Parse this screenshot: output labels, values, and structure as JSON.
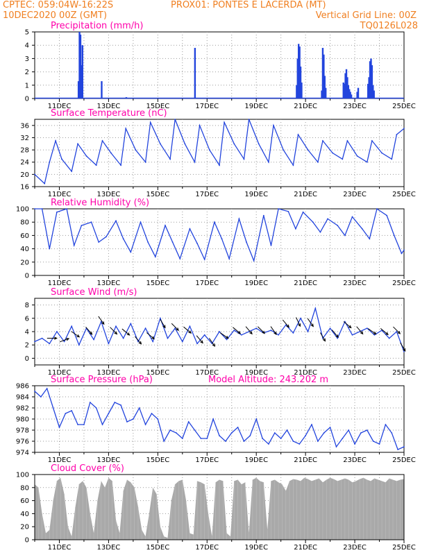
{
  "header": {
    "left_line1": "CPTEC:   059:04W-16:22S",
    "location": "PROX01: PONTES E LACERDA (MT)",
    "left_line2": "10DEC2020 00Z (GMT)",
    "grid_note": "Vertical Grid Line: 00Z",
    "code": "TQ0126L028"
  },
  "colors": {
    "line": "#2244dd",
    "title": "#ff00aa",
    "header": "#f07f20",
    "cloud": "#a9a9a9",
    "grid": "#9a9a9a"
  },
  "chart_data": [
    {
      "id": "precip",
      "type": "bar",
      "title": "Precipitation (mm/h)",
      "x_tick_labels": [
        "11DEC",
        "13DEC",
        "15DEC",
        "17DEC",
        "19DEC",
        "21DEC",
        "23DEC",
        "25DEC"
      ],
      "x_range_days": [
        10,
        25
      ],
      "ylim": [
        0,
        5
      ],
      "yticks": [
        0,
        1,
        2,
        3,
        4,
        5
      ],
      "x": [
        11.78,
        11.82,
        11.86,
        11.9,
        11.94,
        12.72,
        13.72,
        16.51,
        20.64,
        20.68,
        20.72,
        20.76,
        20.8,
        20.84,
        21.66,
        21.7,
        21.74,
        21.78,
        21.82,
        22.54,
        22.58,
        22.62,
        22.66,
        22.7,
        22.74,
        22.78,
        22.82,
        22.86,
        23.1,
        23.14,
        23.54,
        23.58,
        23.62,
        23.66,
        23.7,
        23.74,
        23.78
      ],
      "values": [
        1.3,
        5.0,
        4.8,
        2.5,
        4.0,
        1.3,
        0.1,
        3.8,
        1.0,
        3.0,
        4.1,
        3.9,
        2.4,
        1.2,
        0.6,
        3.8,
        3.3,
        1.7,
        0.8,
        1.2,
        1.1,
        1.9,
        2.2,
        1.6,
        1.0,
        0.7,
        0.5,
        0.3,
        0.5,
        0.8,
        1.1,
        1.6,
        2.8,
        3.0,
        2.5,
        1.0,
        0.6
      ]
    },
    {
      "id": "temp",
      "type": "line",
      "title": "Surface Temperature (nC)",
      "x_tick_labels": [
        "11DEC",
        "13DEC",
        "15DEC",
        "17DEC",
        "19DEC",
        "21DEC",
        "23DEC",
        "25DEC"
      ],
      "x_range_days": [
        10,
        25
      ],
      "ylim": [
        16,
        38
      ],
      "yticks": [
        16,
        20,
        24,
        28,
        32,
        36
      ],
      "x": [
        10.0,
        10.4,
        10.6,
        10.85,
        11.1,
        11.5,
        11.75,
        12.1,
        12.5,
        12.75,
        13.1,
        13.5,
        13.7,
        14.1,
        14.5,
        14.7,
        15.1,
        15.5,
        15.7,
        16.1,
        16.5,
        16.7,
        17.1,
        17.5,
        17.7,
        18.1,
        18.5,
        18.7,
        19.1,
        19.5,
        19.7,
        20.1,
        20.5,
        20.7,
        21.1,
        21.5,
        21.7,
        22.1,
        22.5,
        22.7,
        23.1,
        23.5,
        23.7,
        24.1,
        24.5,
        24.7,
        25.0
      ],
      "values": [
        20,
        17,
        24,
        31,
        25,
        21,
        30,
        26,
        23,
        31,
        27,
        23,
        35,
        28,
        24,
        37,
        30,
        25,
        38,
        30,
        24,
        36,
        28,
        23,
        37,
        30,
        25,
        38,
        30,
        24,
        36,
        28,
        23,
        33,
        28,
        24,
        31,
        27,
        25,
        31,
        26,
        24,
        31,
        27,
        25,
        33,
        35
      ]
    },
    {
      "id": "rh",
      "type": "line",
      "title": "Relative Humidity (%)",
      "x_tick_labels": [
        "11DEC",
        "13DEC",
        "15DEC",
        "17DEC",
        "19DEC",
        "21DEC",
        "23DEC",
        "25DEC"
      ],
      "x_range_days": [
        10,
        25
      ],
      "ylim": [
        0,
        100
      ],
      "yticks": [
        0,
        20,
        40,
        60,
        80,
        100
      ],
      "x": [
        10.0,
        10.3,
        10.6,
        10.9,
        11.3,
        11.6,
        11.9,
        12.3,
        12.6,
        12.9,
        13.3,
        13.6,
        13.9,
        14.3,
        14.6,
        14.9,
        15.3,
        15.6,
        15.9,
        16.3,
        16.6,
        16.9,
        17.3,
        17.6,
        17.9,
        18.3,
        18.6,
        18.9,
        19.3,
        19.6,
        19.9,
        20.3,
        20.6,
        20.9,
        21.3,
        21.6,
        21.9,
        22.3,
        22.6,
        22.9,
        23.3,
        23.6,
        23.9,
        24.3,
        24.6,
        24.9,
        25.0
      ],
      "values": [
        100,
        100,
        40,
        95,
        100,
        45,
        75,
        80,
        50,
        58,
        82,
        55,
        35,
        80,
        50,
        28,
        75,
        50,
        25,
        70,
        48,
        24,
        80,
        55,
        25,
        85,
        50,
        22,
        90,
        45,
        100,
        96,
        70,
        95,
        80,
        65,
        85,
        75,
        60,
        88,
        70,
        55,
        100,
        90,
        60,
        33,
        38
      ]
    },
    {
      "id": "wind",
      "type": "line",
      "title": "Surface Wind (m/s)",
      "x_tick_labels": [
        "11DEC",
        "13DEC",
        "15DEC",
        "17DEC",
        "19DEC",
        "21DEC",
        "23DEC",
        "25DEC"
      ],
      "x_range_days": [
        10,
        25
      ],
      "ylim": [
        -1,
        9
      ],
      "yticks": [
        0,
        2,
        4,
        6,
        8
      ],
      "x": [
        10.0,
        10.3,
        10.6,
        10.9,
        11.2,
        11.5,
        11.8,
        12.1,
        12.4,
        12.7,
        13.0,
        13.3,
        13.6,
        13.9,
        14.2,
        14.5,
        14.8,
        15.1,
        15.4,
        15.7,
        16.0,
        16.3,
        16.6,
        16.9,
        17.2,
        17.5,
        17.8,
        18.1,
        18.4,
        18.7,
        19.0,
        19.3,
        19.6,
        19.9,
        20.2,
        20.5,
        20.8,
        21.1,
        21.4,
        21.7,
        22.0,
        22.3,
        22.6,
        22.9,
        23.2,
        23.5,
        23.8,
        24.1,
        24.4,
        24.7,
        25.0
      ],
      "values": [
        2.5,
        3.0,
        2.2,
        4.0,
        2.5,
        4.8,
        2.0,
        4.5,
        2.8,
        5.5,
        2.2,
        4.8,
        3.0,
        5.2,
        2.5,
        4.5,
        2.5,
        6.0,
        3.0,
        4.5,
        2.5,
        4.8,
        2.2,
        3.5,
        2.2,
        4.0,
        2.8,
        4.2,
        3.5,
        4.0,
        4.5,
        3.8,
        4.2,
        3.5,
        5.0,
        3.8,
        6.0,
        4.0,
        7.5,
        3.0,
        4.5,
        3.0,
        5.5,
        3.5,
        4.0,
        4.5,
        3.5,
        4.2,
        3.0,
        4.0,
        1.0
      ],
      "vector_days": [
        10.7,
        11.2,
        11.65,
        12.2,
        12.7,
        13.2,
        13.7,
        14.2,
        14.7,
        15.2,
        15.7,
        16.2,
        16.7,
        17.2,
        17.7,
        18.2,
        18.7,
        19.2,
        19.7,
        20.2,
        20.7,
        21.2,
        21.7,
        22.2,
        22.7,
        23.2,
        23.7,
        24.2,
        24.7,
        24.95
      ],
      "vector_dirs_deg": [
        0,
        20,
        -35,
        -50,
        -55,
        -45,
        -40,
        -50,
        -40,
        -60,
        -45,
        -40,
        -50,
        -55,
        -35,
        -40,
        -50,
        -45,
        -55,
        -50,
        -65,
        -55,
        -60,
        -50,
        -40,
        -50,
        -35,
        -40,
        -45,
        -60
      ]
    },
    {
      "id": "pres",
      "type": "line",
      "title": "Surface Pressure (hPa)",
      "subtitle": "Model Altitude: 243.202 m",
      "x_tick_labels": [
        "11DEC",
        "13DEC",
        "15DEC",
        "17DEC",
        "19DEC",
        "21DEC",
        "23DEC",
        "25DEC"
      ],
      "x_range_days": [
        10,
        25
      ],
      "ylim": [
        974,
        986
      ],
      "yticks": [
        974,
        976,
        978,
        980,
        982,
        984,
        986
      ],
      "x": [
        10.0,
        10.25,
        10.5,
        10.75,
        11.0,
        11.25,
        11.5,
        11.75,
        12.0,
        12.25,
        12.5,
        12.75,
        13.0,
        13.25,
        13.5,
        13.75,
        14.0,
        14.25,
        14.5,
        14.75,
        15.0,
        15.25,
        15.5,
        15.75,
        16.0,
        16.25,
        16.5,
        16.75,
        17.0,
        17.25,
        17.5,
        17.75,
        18.0,
        18.25,
        18.5,
        18.75,
        19.0,
        19.25,
        19.5,
        19.75,
        20.0,
        20.25,
        20.5,
        20.75,
        21.0,
        21.25,
        21.5,
        21.75,
        22.0,
        22.25,
        22.5,
        22.75,
        23.0,
        23.25,
        23.5,
        23.75,
        24.0,
        24.25,
        24.5,
        24.75,
        25.0
      ],
      "values": [
        985,
        984,
        985.5,
        982,
        978.5,
        981,
        981.5,
        979,
        979,
        983,
        982,
        979,
        981,
        983,
        982.5,
        979.5,
        980,
        982,
        979,
        981,
        980,
        976,
        978,
        977.5,
        976.5,
        979.5,
        978,
        976.5,
        976.5,
        980,
        977,
        976,
        977.5,
        978.5,
        976,
        977,
        980,
        976.5,
        975.5,
        977.5,
        976.5,
        978,
        976,
        975.5,
        977,
        979,
        976,
        977.5,
        978.5,
        975,
        976.5,
        978,
        975.5,
        977.5,
        978,
        976,
        975.5,
        979,
        977.5,
        974.5,
        975
      ]
    },
    {
      "id": "cloud",
      "type": "area",
      "title": "Cloud Cover (%)",
      "x_tick_labels": [
        "11DEC",
        "13DEC",
        "15DEC",
        "17DEC",
        "19DEC",
        "21DEC",
        "23DEC",
        "25DEC"
      ],
      "x_range_days": [
        10,
        25
      ],
      "ylim": [
        0,
        100
      ],
      "yticks": [
        0,
        20,
        40,
        60,
        80,
        100
      ],
      "x": [
        10.0,
        10.15,
        10.3,
        10.45,
        10.6,
        10.75,
        10.9,
        11.05,
        11.2,
        11.35,
        11.5,
        11.65,
        11.8,
        11.95,
        12.1,
        12.25,
        12.4,
        12.55,
        12.7,
        12.85,
        13.0,
        13.15,
        13.3,
        13.45,
        13.6,
        13.75,
        13.9,
        14.05,
        14.2,
        14.35,
        14.5,
        14.65,
        14.8,
        14.95,
        15.1,
        15.25,
        15.4,
        15.55,
        15.7,
        15.85,
        16.0,
        16.15,
        16.3,
        16.45,
        16.6,
        16.75,
        16.9,
        17.05,
        17.2,
        17.35,
        17.5,
        17.65,
        17.8,
        17.95,
        18.1,
        18.25,
        18.4,
        18.55,
        18.7,
        18.85,
        19.0,
        19.15,
        19.3,
        19.45,
        19.6,
        19.75,
        19.9,
        20.05,
        20.2,
        20.35,
        20.5,
        20.65,
        20.8,
        20.95,
        21.1,
        21.25,
        21.4,
        21.55,
        21.7,
        21.85,
        22.0,
        22.15,
        22.3,
        22.45,
        22.6,
        22.75,
        22.9,
        23.05,
        23.2,
        23.35,
        23.5,
        23.65,
        23.8,
        23.95,
        24.1,
        24.25,
        24.4,
        24.55,
        24.7,
        24.85,
        25.0
      ],
      "values": [
        85,
        80,
        40,
        10,
        15,
        60,
        90,
        95,
        70,
        20,
        5,
        50,
        85,
        90,
        80,
        40,
        10,
        60,
        90,
        80,
        95,
        90,
        30,
        10,
        75,
        92,
        88,
        80,
        50,
        15,
        5,
        40,
        80,
        70,
        20,
        5,
        3,
        60,
        85,
        90,
        92,
        60,
        10,
        8,
        90,
        88,
        85,
        40,
        5,
        88,
        92,
        90,
        10,
        5,
        90,
        92,
        85,
        88,
        10,
        92,
        95,
        90,
        88,
        15,
        90,
        92,
        88,
        85,
        75,
        90,
        93,
        92,
        90,
        95,
        93,
        90,
        92,
        94,
        88,
        92,
        95,
        93,
        90,
        92,
        94,
        92,
        88,
        90,
        93,
        95,
        92,
        90,
        94,
        92,
        90,
        88,
        94,
        92,
        90,
        92,
        93
      ]
    }
  ]
}
